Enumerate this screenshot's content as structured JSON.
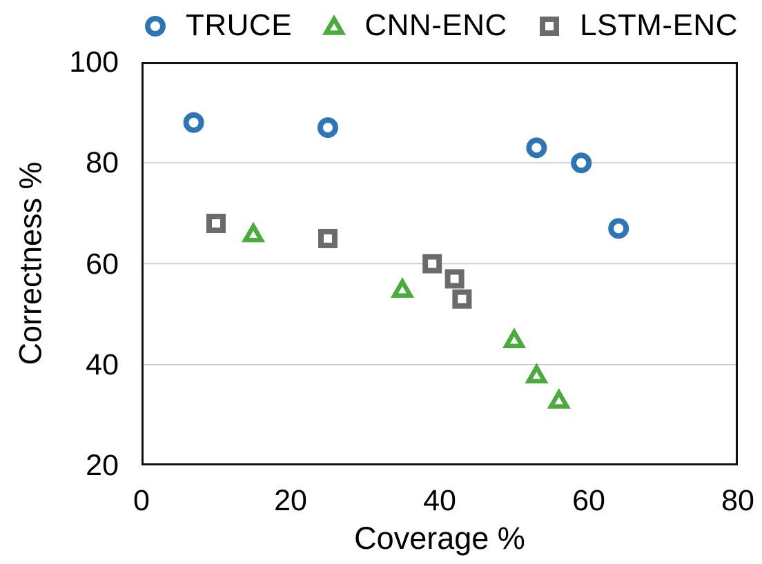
{
  "colors": {
    "truce_blue": "#2E75B6",
    "cnn_green": "#4DAA3E",
    "lstm_gray": "#6B6B6B",
    "gridline": "#C4C4C4",
    "frame": "#111111",
    "text": "#000000",
    "background": "#FFFFFF"
  },
  "chart_data": {
    "type": "scatter",
    "title": "",
    "xlabel": "Coverage %",
    "ylabel": "Correctness %",
    "xlim": [
      0,
      80
    ],
    "ylim": [
      20,
      100
    ],
    "x_ticks": [
      0,
      20,
      40,
      60,
      80
    ],
    "y_ticks": [
      20,
      40,
      60,
      80,
      100
    ],
    "grid": "horizontal-only",
    "legend_position": "top",
    "series": [
      {
        "name": "TRUCE",
        "marker": "circle",
        "color": "#2E75B6",
        "points": [
          [
            7,
            88
          ],
          [
            25,
            87
          ],
          [
            53,
            83
          ],
          [
            59,
            80
          ],
          [
            64,
            67
          ]
        ]
      },
      {
        "name": "CNN-ENC",
        "marker": "triangle",
        "color": "#4DAA3E",
        "points": [
          [
            15,
            66
          ],
          [
            35,
            55
          ],
          [
            50,
            45
          ],
          [
            53,
            38
          ],
          [
            56,
            33
          ]
        ]
      },
      {
        "name": "LSTM-ENC",
        "marker": "square",
        "color": "#6B6B6B",
        "points": [
          [
            10,
            68
          ],
          [
            25,
            65
          ],
          [
            39,
            60
          ],
          [
            42,
            57
          ],
          [
            43,
            53
          ]
        ]
      }
    ]
  }
}
